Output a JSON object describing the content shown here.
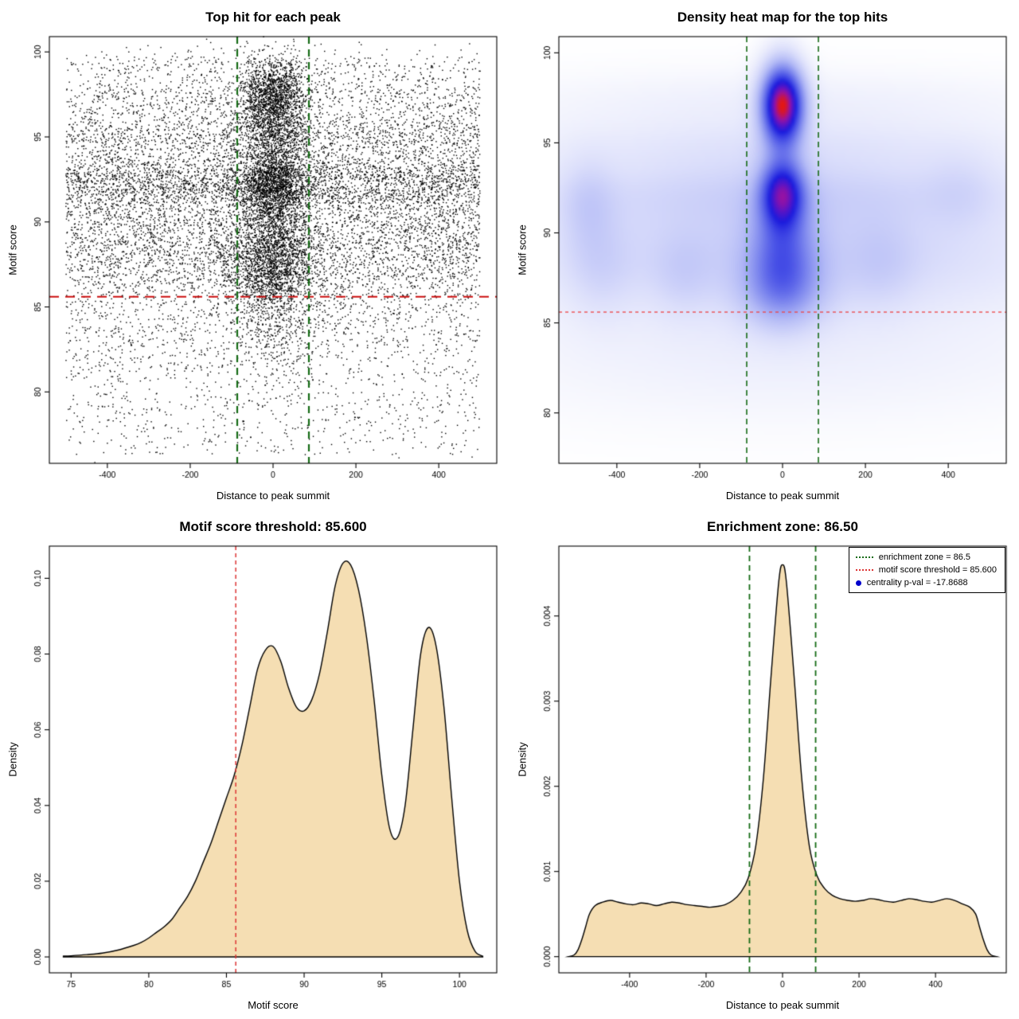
{
  "chart_data": [
    {
      "type": "scatter",
      "title": "Top hit for each peak",
      "xlabel": "Distance to peak summit",
      "ylabel": "Motif score",
      "xlim": [
        -540,
        540
      ],
      "ylim": [
        75.8,
        100.9
      ],
      "xticks": {
        "at": [
          -400,
          -200,
          0,
          200,
          400
        ],
        "labels": [
          "-400",
          "-200",
          "0",
          "200",
          "400"
        ]
      },
      "yticks": {
        "at": [
          80,
          85,
          90,
          95,
          100
        ],
        "labels": [
          "80",
          "85",
          "90",
          "95",
          "100"
        ]
      },
      "point_color": "#000000",
      "seed": 20,
      "groups": [
        {
          "n": 2600,
          "x": [
            "u",
            -500,
            500
          ],
          "y": [
            "n",
            92.3,
            0.9
          ]
        },
        {
          "n": 2200,
          "x": [
            "u",
            -500,
            500
          ],
          "y": [
            "n",
            88.6,
            1.6
          ]
        },
        {
          "n": 1200,
          "x": [
            "u",
            -500,
            500
          ],
          "y": [
            "n",
            94.9,
            0.8
          ]
        },
        {
          "n": 900,
          "x": [
            "u",
            -500,
            500
          ],
          "y": [
            "n",
            97.2,
            0.9
          ]
        },
        {
          "n": 300,
          "x": [
            "u",
            -500,
            500
          ],
          "y": [
            "n",
            99.2,
            0.5
          ]
        },
        {
          "n": 2000,
          "x": [
            "u",
            -500,
            500
          ],
          "y": [
            "n",
            90.5,
            3.2
          ]
        },
        {
          "n": 1500,
          "x": [
            "u",
            -500,
            500
          ],
          "y": [
            "n",
            83.5,
            2.6
          ]
        },
        {
          "n": 350,
          "x": [
            "u",
            -500,
            500
          ],
          "y": [
            "u",
            76.3,
            80
          ]
        },
        {
          "n": 1700,
          "x": [
            "n",
            0,
            40
          ],
          "y": [
            "n",
            97.3,
            1.2
          ]
        },
        {
          "n": 1500,
          "x": [
            "n",
            0,
            42
          ],
          "y": [
            "n",
            92.3,
            1.1
          ]
        },
        {
          "n": 1400,
          "x": [
            "n",
            0,
            48
          ],
          "y": [
            "n",
            89.0,
            1.8
          ]
        },
        {
          "n": 500,
          "x": [
            "n",
            0,
            45
          ],
          "y": [
            "n",
            94.9,
            0.9
          ]
        },
        {
          "n": 700,
          "x": [
            "n",
            0,
            55
          ],
          "y": [
            "n",
            87.0,
            1.0
          ]
        },
        {
          "n": 400,
          "x": [
            "n",
            0,
            60
          ],
          "y": [
            "n",
            84.5,
            1.5
          ]
        }
      ],
      "lines": [
        {
          "dir": "h",
          "at": 85.6,
          "color": "#cc1111",
          "w": 2.2,
          "dash": [
            12,
            8
          ]
        },
        {
          "dir": "v",
          "at": -86.5,
          "color": "#166b16",
          "w": 2.2,
          "dash": [
            9,
            7
          ]
        },
        {
          "dir": "v",
          "at": 86.5,
          "color": "#166b16",
          "w": 2.2,
          "dash": [
            9,
            7
          ]
        }
      ]
    },
    {
      "type": "heatmap",
      "title": "Density heat map for the top hits",
      "xlabel": "Distance to peak summit",
      "ylabel": "Motif score",
      "xlim": [
        -540,
        540
      ],
      "ylim": [
        77.2,
        100.9
      ],
      "xticks": {
        "at": [
          -400,
          -200,
          0,
          200,
          400
        ],
        "labels": [
          "-400",
          "-200",
          "0",
          "200",
          "400"
        ]
      },
      "yticks": {
        "at": [
          80,
          85,
          90,
          95,
          100
        ],
        "labels": [
          "80",
          "85",
          "90",
          "95",
          "100"
        ]
      },
      "blobs": [
        {
          "x": 0,
          "y": 97.1,
          "sx": 34,
          "sy": 1.5,
          "a": 1.6
        },
        {
          "x": 0,
          "y": 92.2,
          "sx": 36,
          "sy": 1.3,
          "a": 1.05
        },
        {
          "x": 0,
          "y": 88.8,
          "sx": 55,
          "sy": 2.0,
          "a": 0.55
        },
        {
          "x": 0,
          "y": 86.6,
          "sx": 75,
          "sy": 1.4,
          "a": 0.28
        },
        {
          "x": 0,
          "y": 92.3,
          "sx": 430,
          "sy": 1.4,
          "a": 0.16
        },
        {
          "x": 0,
          "y": 88.6,
          "sx": 430,
          "sy": 2.0,
          "a": 0.17
        },
        {
          "x": 0,
          "y": 90.5,
          "sx": 520,
          "sy": 3.6,
          "a": 0.1
        },
        {
          "x": 0,
          "y": 94.9,
          "sx": 430,
          "sy": 1.0,
          "a": 0.08
        },
        {
          "x": 0,
          "y": 97.2,
          "sx": 450,
          "sy": 1.2,
          "a": 0.06
        },
        {
          "x": 0,
          "y": 83.3,
          "sx": 500,
          "sy": 2.6,
          "a": 0.07
        },
        {
          "x": -470,
          "y": 91.5,
          "sx": 45,
          "sy": 1.8,
          "a": 0.14
        },
        {
          "x": -440,
          "y": 88.0,
          "sx": 55,
          "sy": 2.0,
          "a": 0.1
        },
        {
          "x": 240,
          "y": 88.3,
          "sx": 55,
          "sy": 1.8,
          "a": 0.09
        },
        {
          "x": -240,
          "y": 87.6,
          "sx": 50,
          "sy": 1.6,
          "a": 0.09
        },
        {
          "x": 430,
          "y": 92.4,
          "sx": 60,
          "sy": 1.5,
          "a": 0.08
        }
      ],
      "colormap": [
        [
          0.0,
          "#ffffff"
        ],
        [
          0.05,
          "#f3f4fd"
        ],
        [
          0.15,
          "#dcdffb"
        ],
        [
          0.3,
          "#b3baf6"
        ],
        [
          0.45,
          "#7e88ee"
        ],
        [
          0.6,
          "#4750e6"
        ],
        [
          0.72,
          "#1b1bdd"
        ],
        [
          0.82,
          "#5714c6"
        ],
        [
          0.9,
          "#9512a4"
        ],
        [
          1.0,
          "#e21717"
        ]
      ],
      "lines": [
        {
          "dir": "h",
          "at": 85.6,
          "color": "#ee4444",
          "w": 1.3,
          "dash": [
            4,
            4
          ]
        },
        {
          "dir": "v",
          "at": -86.5,
          "color": "#166b16",
          "w": 1.6,
          "dash": [
            7,
            5
          ]
        },
        {
          "dir": "v",
          "at": 86.5,
          "color": "#166b16",
          "w": 1.6,
          "dash": [
            7,
            5
          ]
        }
      ]
    },
    {
      "type": "area",
      "title": "Motif score threshold: 85.600",
      "xlabel": "Motif score",
      "ylabel": "Density",
      "xlim": [
        73.6,
        102.4
      ],
      "ylim": [
        -0.0042,
        0.1085
      ],
      "xticks": {
        "at": [
          75,
          80,
          85,
          90,
          95,
          100
        ],
        "labels": [
          "75",
          "80",
          "85",
          "90",
          "95",
          "100"
        ]
      },
      "yticks": {
        "at": [
          0,
          0.02,
          0.04,
          0.06,
          0.08,
          0.1
        ],
        "labels": [
          "0.00",
          "0.02",
          "0.04",
          "0.06",
          "0.08",
          "0.10"
        ]
      },
      "fill": "#f5deb3",
      "stroke": "#000000",
      "x": [
        74.5,
        75,
        76,
        77,
        78,
        79,
        79.5,
        80,
        80.5,
        81,
        81.5,
        82,
        82.5,
        83,
        83.5,
        84,
        84.5,
        85,
        85.5,
        86,
        86.5,
        87,
        87.5,
        88,
        88.5,
        89,
        89.5,
        90,
        90.5,
        91,
        91.5,
        92,
        92.5,
        93,
        93.5,
        94,
        94.5,
        95,
        95.5,
        96,
        96.5,
        97,
        97.5,
        98,
        98.5,
        99,
        99.5,
        100,
        100.5,
        101,
        101.5
      ],
      "y": [
        0.0002,
        0.0003,
        0.0006,
        0.001,
        0.0018,
        0.003,
        0.0038,
        0.005,
        0.0065,
        0.008,
        0.01,
        0.013,
        0.016,
        0.02,
        0.025,
        0.03,
        0.036,
        0.042,
        0.048,
        0.056,
        0.066,
        0.076,
        0.081,
        0.082,
        0.078,
        0.071,
        0.066,
        0.065,
        0.068,
        0.075,
        0.086,
        0.098,
        0.104,
        0.1035,
        0.097,
        0.085,
        0.068,
        0.048,
        0.034,
        0.0315,
        0.04,
        0.06,
        0.08,
        0.087,
        0.082,
        0.066,
        0.042,
        0.02,
        0.007,
        0.0015,
        0.0002
      ],
      "lines": [
        {
          "dir": "v",
          "at": 85.6,
          "color": "#dd3333",
          "w": 1.5,
          "dash": [
            5,
            4
          ]
        }
      ]
    },
    {
      "type": "area",
      "title": "Enrichment zone: 86.50",
      "xlabel": "Distance to peak summit",
      "ylabel": "Density",
      "xlim": [
        -585,
        585
      ],
      "ylim": [
        -0.00019,
        0.00482
      ],
      "xticks": {
        "at": [
          -400,
          -200,
          0,
          200,
          400
        ],
        "labels": [
          "-400",
          "-200",
          "0",
          "200",
          "400"
        ]
      },
      "yticks": {
        "at": [
          0,
          0.001,
          0.002,
          0.003,
          0.004
        ],
        "labels": [
          "0.000",
          "0.001",
          "0.002",
          "0.003",
          "0.004"
        ]
      },
      "fill": "#f5deb3",
      "stroke": "#000000",
      "x": [
        -560,
        -545,
        -535,
        -525,
        -515,
        -505,
        -490,
        -470,
        -450,
        -430,
        -410,
        -390,
        -370,
        -350,
        -330,
        -310,
        -290,
        -270,
        -250,
        -230,
        -210,
        -190,
        -170,
        -150,
        -130,
        -110,
        -90,
        -70,
        -50,
        -30,
        -10,
        0,
        10,
        30,
        50,
        70,
        90,
        110,
        130,
        150,
        170,
        190,
        210,
        230,
        250,
        270,
        290,
        310,
        330,
        350,
        370,
        390,
        410,
        430,
        450,
        470,
        490,
        505,
        515,
        525,
        535,
        545,
        560
      ],
      "y": [
        0,
        2e-05,
        8e-05,
        0.0002,
        0.00035,
        0.0005,
        0.0006,
        0.00064,
        0.00066,
        0.00064,
        0.00062,
        0.00061,
        0.00063,
        0.00062,
        0.0006,
        0.00062,
        0.00064,
        0.00063,
        0.00061,
        0.0006,
        0.00059,
        0.00058,
        0.00059,
        0.00061,
        0.00066,
        0.00075,
        0.00092,
        0.0013,
        0.0021,
        0.0033,
        0.0044,
        0.0046,
        0.0044,
        0.0033,
        0.0021,
        0.0013,
        0.00095,
        0.0008,
        0.00072,
        0.00068,
        0.00066,
        0.00065,
        0.00066,
        0.00068,
        0.00067,
        0.00065,
        0.00064,
        0.00066,
        0.00068,
        0.00067,
        0.00065,
        0.00064,
        0.00066,
        0.00068,
        0.00066,
        0.00062,
        0.00058,
        0.0005,
        0.00035,
        0.0002,
        8e-05,
        2e-05,
        0
      ],
      "lines": [
        {
          "dir": "v",
          "at": -86.5,
          "color": "#166b16",
          "w": 1.8,
          "dash": [
            7,
            5
          ]
        },
        {
          "dir": "v",
          "at": 86.5,
          "color": "#166b16",
          "w": 1.8,
          "dash": [
            7,
            5
          ]
        }
      ],
      "legend": {
        "items": [
          {
            "marker": "dotted-line",
            "color": "#166b16",
            "label": "enrichment zone = 86.5"
          },
          {
            "marker": "dotted-line",
            "color": "#dd3333",
            "label": "motif score threshold = 85.600"
          },
          {
            "marker": "dot",
            "color": "#0000cc",
            "label": "centrality p-val = -17.8688"
          }
        ]
      }
    }
  ]
}
